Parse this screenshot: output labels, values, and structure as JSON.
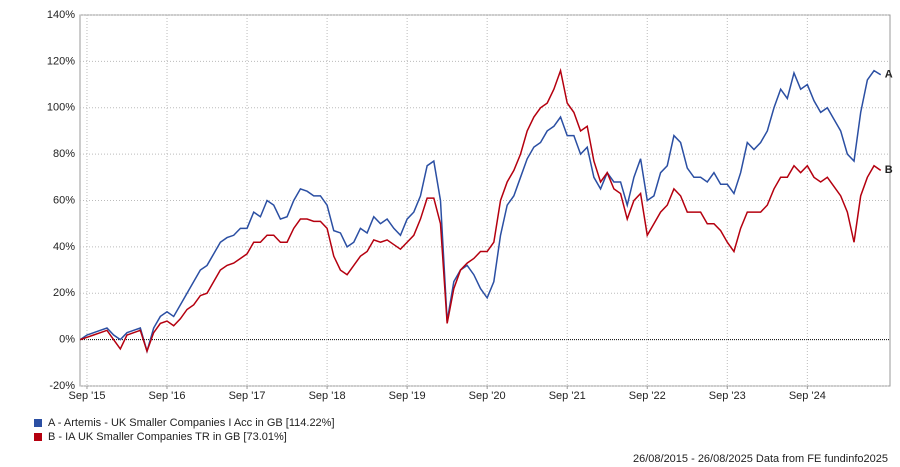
{
  "chart_data": {
    "type": "line",
    "x": [
      "2015-08",
      "2015-09",
      "2015-10",
      "2015-11",
      "2015-12",
      "2016-01",
      "2016-02",
      "2016-03",
      "2016-04",
      "2016-05",
      "2016-06",
      "2016-07",
      "2016-08",
      "2016-09",
      "2016-10",
      "2016-11",
      "2016-12",
      "2017-01",
      "2017-02",
      "2017-03",
      "2017-04",
      "2017-05",
      "2017-06",
      "2017-07",
      "2017-08",
      "2017-09",
      "2017-10",
      "2017-11",
      "2017-12",
      "2018-01",
      "2018-02",
      "2018-03",
      "2018-04",
      "2018-05",
      "2018-06",
      "2018-07",
      "2018-08",
      "2018-09",
      "2018-10",
      "2018-11",
      "2018-12",
      "2019-01",
      "2019-02",
      "2019-03",
      "2019-04",
      "2019-05",
      "2019-06",
      "2019-07",
      "2019-08",
      "2019-09",
      "2019-10",
      "2019-11",
      "2019-12",
      "2020-01",
      "2020-02",
      "2020-03",
      "2020-04",
      "2020-05",
      "2020-06",
      "2020-07",
      "2020-08",
      "2020-09",
      "2020-10",
      "2020-11",
      "2020-12",
      "2021-01",
      "2021-02",
      "2021-03",
      "2021-04",
      "2021-05",
      "2021-06",
      "2021-07",
      "2021-08",
      "2021-09",
      "2021-10",
      "2021-11",
      "2021-12",
      "2022-01",
      "2022-02",
      "2022-03",
      "2022-04",
      "2022-05",
      "2022-06",
      "2022-07",
      "2022-08",
      "2022-09",
      "2022-10",
      "2022-11",
      "2022-12",
      "2023-01",
      "2023-02",
      "2023-03",
      "2023-04",
      "2023-05",
      "2023-06",
      "2023-07",
      "2023-08",
      "2023-09",
      "2023-10",
      "2023-11",
      "2023-12",
      "2024-01",
      "2024-02",
      "2024-03",
      "2024-04",
      "2024-05",
      "2024-06",
      "2024-07",
      "2024-08",
      "2024-09",
      "2024-10",
      "2024-11",
      "2024-12",
      "2025-01",
      "2025-02",
      "2025-03",
      "2025-04",
      "2025-05",
      "2025-06",
      "2025-07",
      "2025-08"
    ],
    "series": [
      {
        "name": "A - Artemis - UK Smaller Companies I Acc in GB [114.22%]",
        "label": "A",
        "color": "#2b4fa3",
        "values": [
          0,
          2,
          3,
          4,
          5,
          2,
          0,
          3,
          4,
          5,
          -5,
          5,
          10,
          12,
          10,
          15,
          20,
          25,
          30,
          32,
          37,
          42,
          44,
          45,
          48,
          48,
          55,
          53,
          60,
          58,
          52,
          53,
          60,
          65,
          64,
          62,
          62,
          58,
          47,
          46,
          40,
          42,
          48,
          46,
          53,
          50,
          52,
          48,
          45,
          52,
          55,
          62,
          75,
          77,
          60,
          8,
          25,
          30,
          32,
          28,
          22,
          18,
          25,
          45,
          58,
          62,
          70,
          78,
          83,
          85,
          90,
          92,
          96,
          88,
          88,
          80,
          83,
          70,
          65,
          72,
          68,
          68,
          58,
          70,
          78,
          60,
          62,
          72,
          75,
          88,
          85,
          74,
          70,
          70,
          68,
          72,
          67,
          67,
          63,
          72,
          85,
          82,
          85,
          90,
          100,
          108,
          104,
          115,
          108,
          110,
          103,
          98,
          100,
          95,
          90,
          80,
          77,
          98,
          112,
          116,
          114.22
        ]
      },
      {
        "name": "B - IA UK Smaller Companies TR in GB [73.01%]",
        "label": "B",
        "color": "#b5000f",
        "values": [
          0,
          1,
          2,
          3,
          4,
          0,
          -4,
          2,
          3,
          4,
          -5,
          3,
          7,
          8,
          6,
          9,
          13,
          15,
          19,
          20,
          25,
          30,
          32,
          33,
          35,
          37,
          42,
          42,
          45,
          45,
          42,
          42,
          48,
          52,
          52,
          51,
          51,
          48,
          36,
          30,
          28,
          32,
          36,
          38,
          43,
          42,
          43,
          41,
          39,
          42,
          45,
          52,
          61,
          61,
          50,
          7,
          22,
          30,
          33,
          35,
          38,
          38,
          42,
          60,
          68,
          73,
          80,
          90,
          96,
          100,
          102,
          108,
          116,
          102,
          98,
          90,
          92,
          77,
          68,
          72,
          65,
          63,
          52,
          60,
          63,
          45,
          50,
          55,
          58,
          65,
          62,
          55,
          55,
          55,
          50,
          50,
          47,
          42,
          38,
          48,
          55,
          55,
          55,
          58,
          65,
          70,
          70,
          75,
          72,
          75,
          70,
          68,
          70,
          66,
          62,
          55,
          42,
          62,
          70,
          75,
          73.01
        ]
      }
    ],
    "ylim": [
      -20,
      140
    ],
    "yticks": [
      {
        "value": -20,
        "label": "-20%"
      },
      {
        "value": 0,
        "label": "0%"
      },
      {
        "value": 20,
        "label": "20%"
      },
      {
        "value": 40,
        "label": "40%"
      },
      {
        "value": 60,
        "label": "60%"
      },
      {
        "value": 80,
        "label": "80%"
      },
      {
        "value": 100,
        "label": "100%"
      },
      {
        "value": 120,
        "label": "120%"
      },
      {
        "value": 140,
        "label": "140%"
      }
    ],
    "xticks": [
      {
        "value": "2015-09",
        "label": "Sep '15"
      },
      {
        "value": "2016-09",
        "label": "Sep '16"
      },
      {
        "value": "2017-09",
        "label": "Sep '17"
      },
      {
        "value": "2018-09",
        "label": "Sep '18"
      },
      {
        "value": "2019-09",
        "label": "Sep '19"
      },
      {
        "value": "2020-09",
        "label": "Sep '20"
      },
      {
        "value": "2021-09",
        "label": "Sep '21"
      },
      {
        "value": "2022-09",
        "label": "Sep '22"
      },
      {
        "value": "2023-09",
        "label": "Sep '23"
      },
      {
        "value": "2024-09",
        "label": "Sep '24"
      }
    ],
    "grid": true,
    "footer": "26/08/2015 - 26/08/2025 Data from FE fundinfo2025"
  }
}
